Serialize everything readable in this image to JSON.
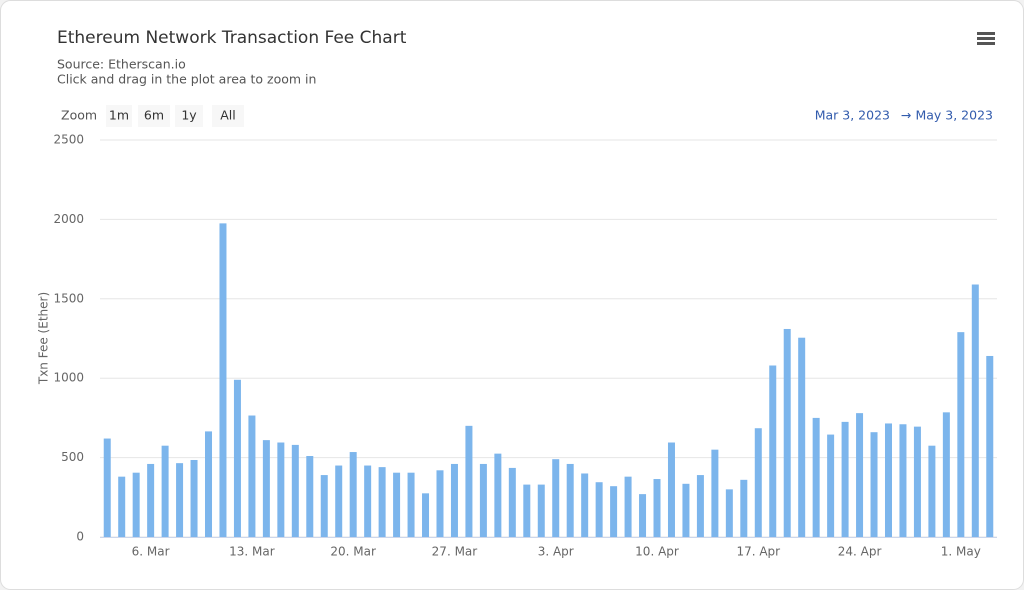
{
  "chart_data": {
    "type": "bar",
    "title": "Ethereum Network Transaction Fee Chart",
    "subtitle": "Source: Etherscan.io",
    "subtitle2": "Click and drag in the plot area to zoom in",
    "zoom_label": "Zoom",
    "zoom_buttons": [
      "1m",
      "6m",
      "1y",
      "All"
    ],
    "range_from": "Mar 3, 2023",
    "range_arrow": "→",
    "range_to": "May 3, 2023",
    "y_label": "Txn Fee (Ether)",
    "color": "#7cb5ec",
    "grid": true,
    "ylim": [
      0,
      2500
    ],
    "yticks": [
      0,
      500,
      1000,
      1500,
      2000,
      2500
    ],
    "categories": [
      null,
      null,
      null,
      "6. Mar",
      null,
      null,
      null,
      null,
      null,
      null,
      "13. Mar",
      null,
      null,
      null,
      null,
      null,
      null,
      "20. Mar",
      null,
      null,
      null,
      null,
      null,
      null,
      "27. Mar",
      null,
      null,
      null,
      null,
      null,
      null,
      "3. Apr",
      null,
      null,
      null,
      null,
      null,
      null,
      "10. Apr",
      null,
      null,
      null,
      null,
      null,
      null,
      "17. Apr",
      null,
      null,
      null,
      null,
      null,
      null,
      "24. Apr",
      null,
      null,
      null,
      null,
      null,
      null,
      "1. May",
      null,
      null
    ],
    "values": [
      620,
      380,
      405,
      460,
      575,
      465,
      485,
      665,
      1975,
      990,
      765,
      610,
      595,
      580,
      510,
      390,
      450,
      535,
      450,
      440,
      405,
      405,
      275,
      420,
      460,
      700,
      460,
      525,
      435,
      330,
      330,
      490,
      460,
      400,
      345,
      320,
      380,
      270,
      365,
      595,
      335,
      390,
      550,
      300,
      360,
      685,
      1080,
      1310,
      1255,
      750,
      645,
      725,
      780,
      660,
      715,
      710,
      695,
      575,
      785,
      1290,
      1590,
      1140
    ]
  }
}
